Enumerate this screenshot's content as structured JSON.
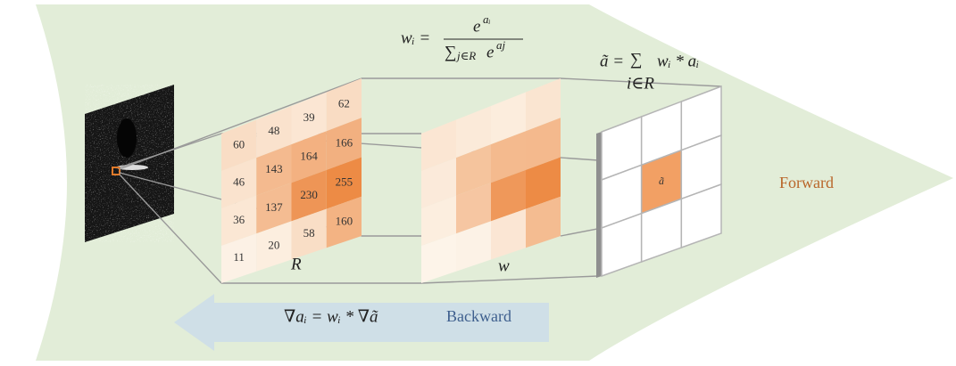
{
  "softmax": {
    "lhs": "wᵢ =",
    "numerator": "e",
    "numerator_exp": "aᵢ",
    "sum": "∑",
    "sum_sub": "j∈R",
    "denominator": "e",
    "denominator_exp": "aj"
  },
  "pooling": {
    "lhs": "ã =",
    "sum": "∑",
    "sum_sub": "i∈R",
    "rhs": "wᵢ * aᵢ"
  },
  "gradient": {
    "formula": "∇aᵢ = wᵢ * ∇ã"
  },
  "grid_r": {
    "label": "R",
    "rows": [
      [
        "60",
        "48",
        "39",
        "62"
      ],
      [
        "46",
        "143",
        "164",
        "166"
      ],
      [
        "36",
        "137",
        "230",
        "255"
      ],
      [
        "11",
        "20",
        "58",
        "160"
      ]
    ]
  },
  "grid_w": {
    "label": "w"
  },
  "output": {
    "center": "ã"
  },
  "directions": {
    "forward": "Forward",
    "backward": "Backward"
  }
}
